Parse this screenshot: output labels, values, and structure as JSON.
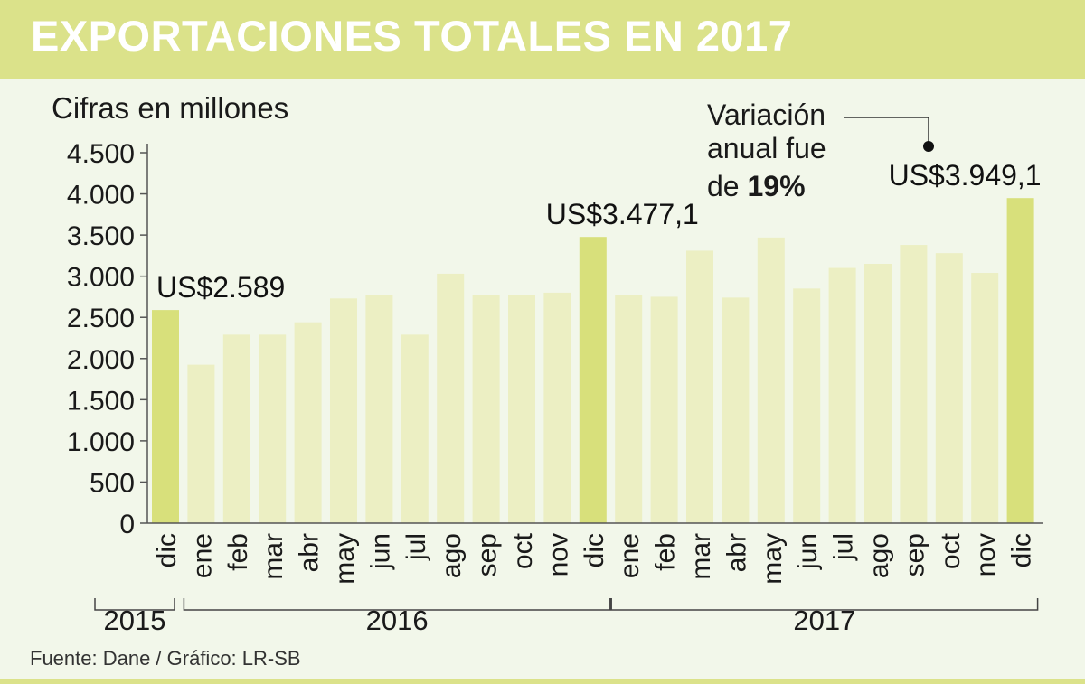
{
  "title": "EXPORTACIONES TOTALES EN 2017",
  "subtitle": "Cifras en millones",
  "source": "Fuente: Dane / Gráfico: LR-SB",
  "colors": {
    "header": "#dbe28a",
    "background": "#f2f7ea",
    "bar": "#ecefc3",
    "bar_highlight": "#d8e07b"
  },
  "annotation": {
    "line1": "Variación",
    "line2": "anual fue",
    "line3_prefix": "de",
    "line3_value": "19%"
  },
  "chart_data": {
    "type": "bar",
    "title": "EXPORTACIONES TOTALES EN 2017",
    "ylabel": "Cifras en millones",
    "xlabel": "",
    "ylim": [
      0,
      4500
    ],
    "yticks": [
      0,
      500,
      1000,
      1500,
      2000,
      2500,
      3000,
      3500,
      4000,
      4500
    ],
    "ytick_labels": [
      "0",
      "500",
      "1.000",
      "1.500",
      "2.000",
      "2.500",
      "3.000",
      "3.500",
      "4.000",
      "4.500"
    ],
    "categories": [
      "dic",
      "ene",
      "feb",
      "mar",
      "abr",
      "may",
      "jun",
      "jul",
      "ago",
      "sep",
      "oct",
      "nov",
      "dic",
      "ene",
      "feb",
      "mar",
      "abr",
      "may",
      "jun",
      "jul",
      "ago",
      "sep",
      "oct",
      "nov",
      "dic"
    ],
    "values": [
      2589,
      1925,
      2290,
      2290,
      2440,
      2730,
      2770,
      2290,
      3030,
      2770,
      2770,
      2800,
      3477.1,
      2770,
      2750,
      3310,
      2740,
      3470,
      2850,
      3100,
      3150,
      3380,
      3280,
      3040,
      3949.1
    ],
    "highlight": [
      0,
      12,
      24
    ],
    "data_labels": [
      {
        "index": 0,
        "text": "US$2.589"
      },
      {
        "index": 12,
        "text": "US$3.477,1"
      },
      {
        "index": 24,
        "text": "US$3.949,1"
      }
    ],
    "year_groups": [
      {
        "label": "2015",
        "start": 0,
        "end": 0
      },
      {
        "label": "2016",
        "start": 1,
        "end": 12
      },
      {
        "label": "2017",
        "start": 13,
        "end": 24
      }
    ]
  }
}
